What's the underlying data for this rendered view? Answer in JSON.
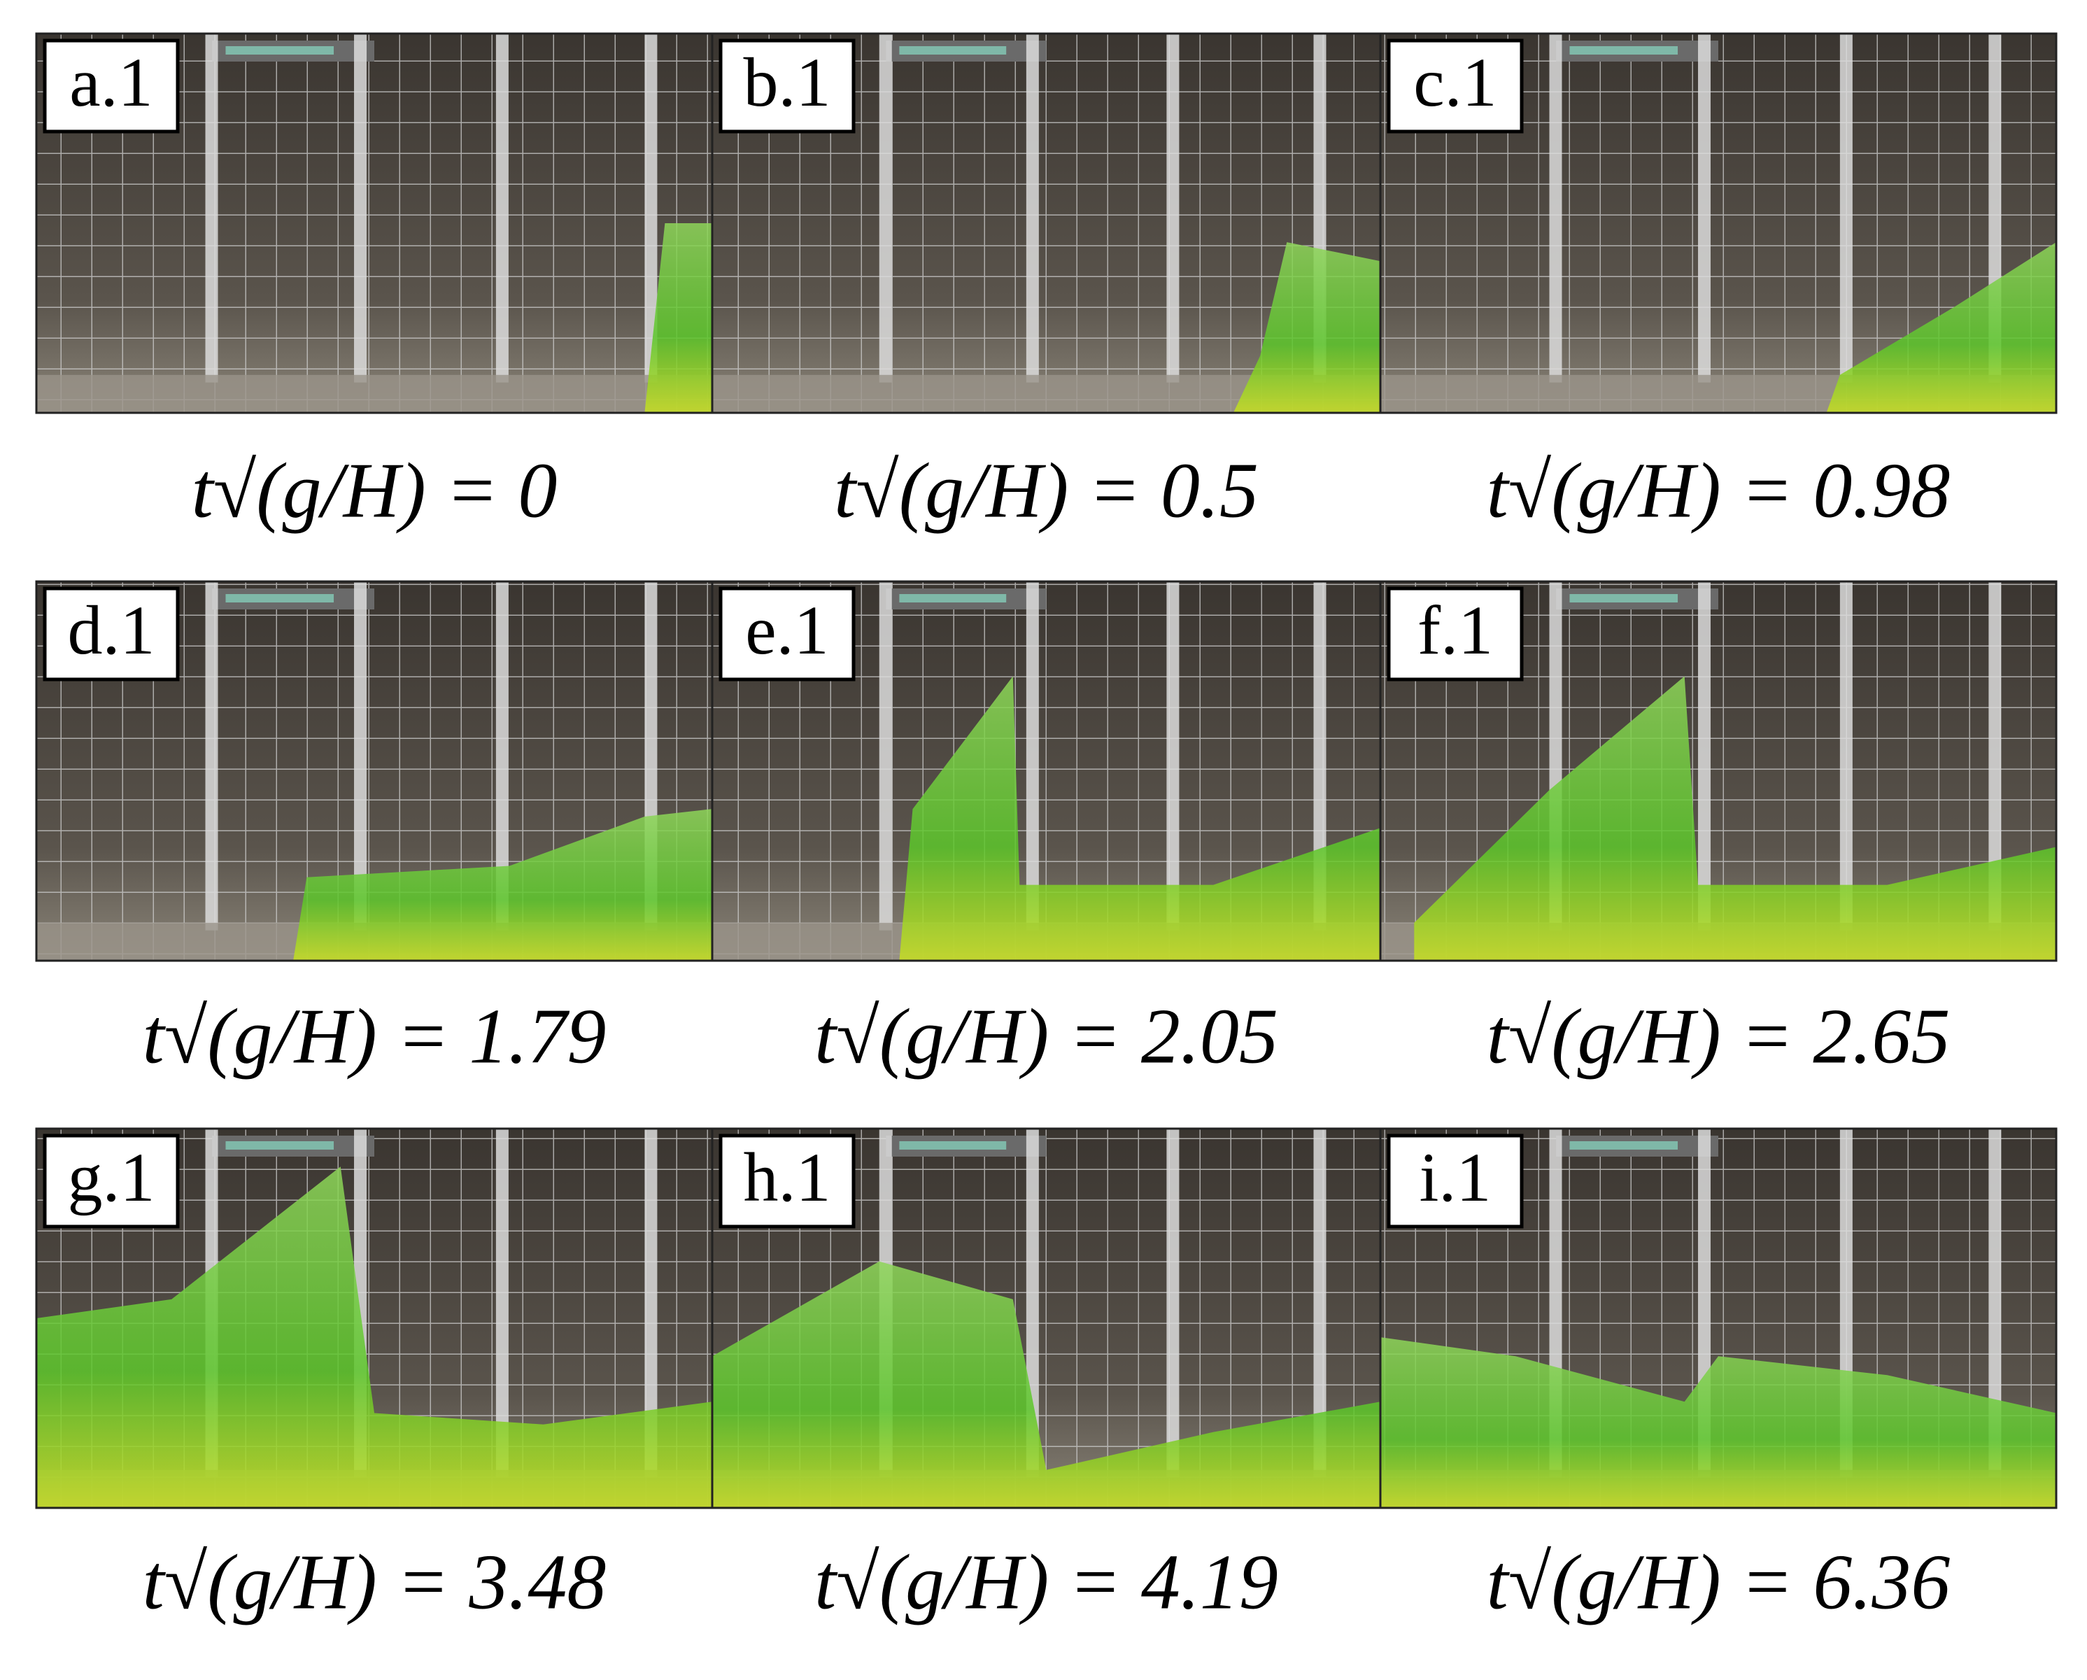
{
  "panels": [
    {
      "label": "a.1",
      "caption": "t√(g/H) = 0"
    },
    {
      "label": "b.1",
      "caption": "t√(g/H) = 0.5"
    },
    {
      "label": "c.1",
      "caption": "t√(g/H) = 0.98"
    },
    {
      "label": "d.1",
      "caption": "t√(g/H) = 1.79"
    },
    {
      "label": "e.1",
      "caption": "t√(g/H) = 2.05"
    },
    {
      "label": "f.1",
      "caption": "t√(g/H) = 2.65"
    },
    {
      "label": "g.1",
      "caption": "t√(g/H) = 3.48"
    },
    {
      "label": "h.1",
      "caption": "t√(g/H) = 4.19"
    },
    {
      "label": "i.1",
      "caption": "t√(g/H) = 6.36"
    }
  ]
}
